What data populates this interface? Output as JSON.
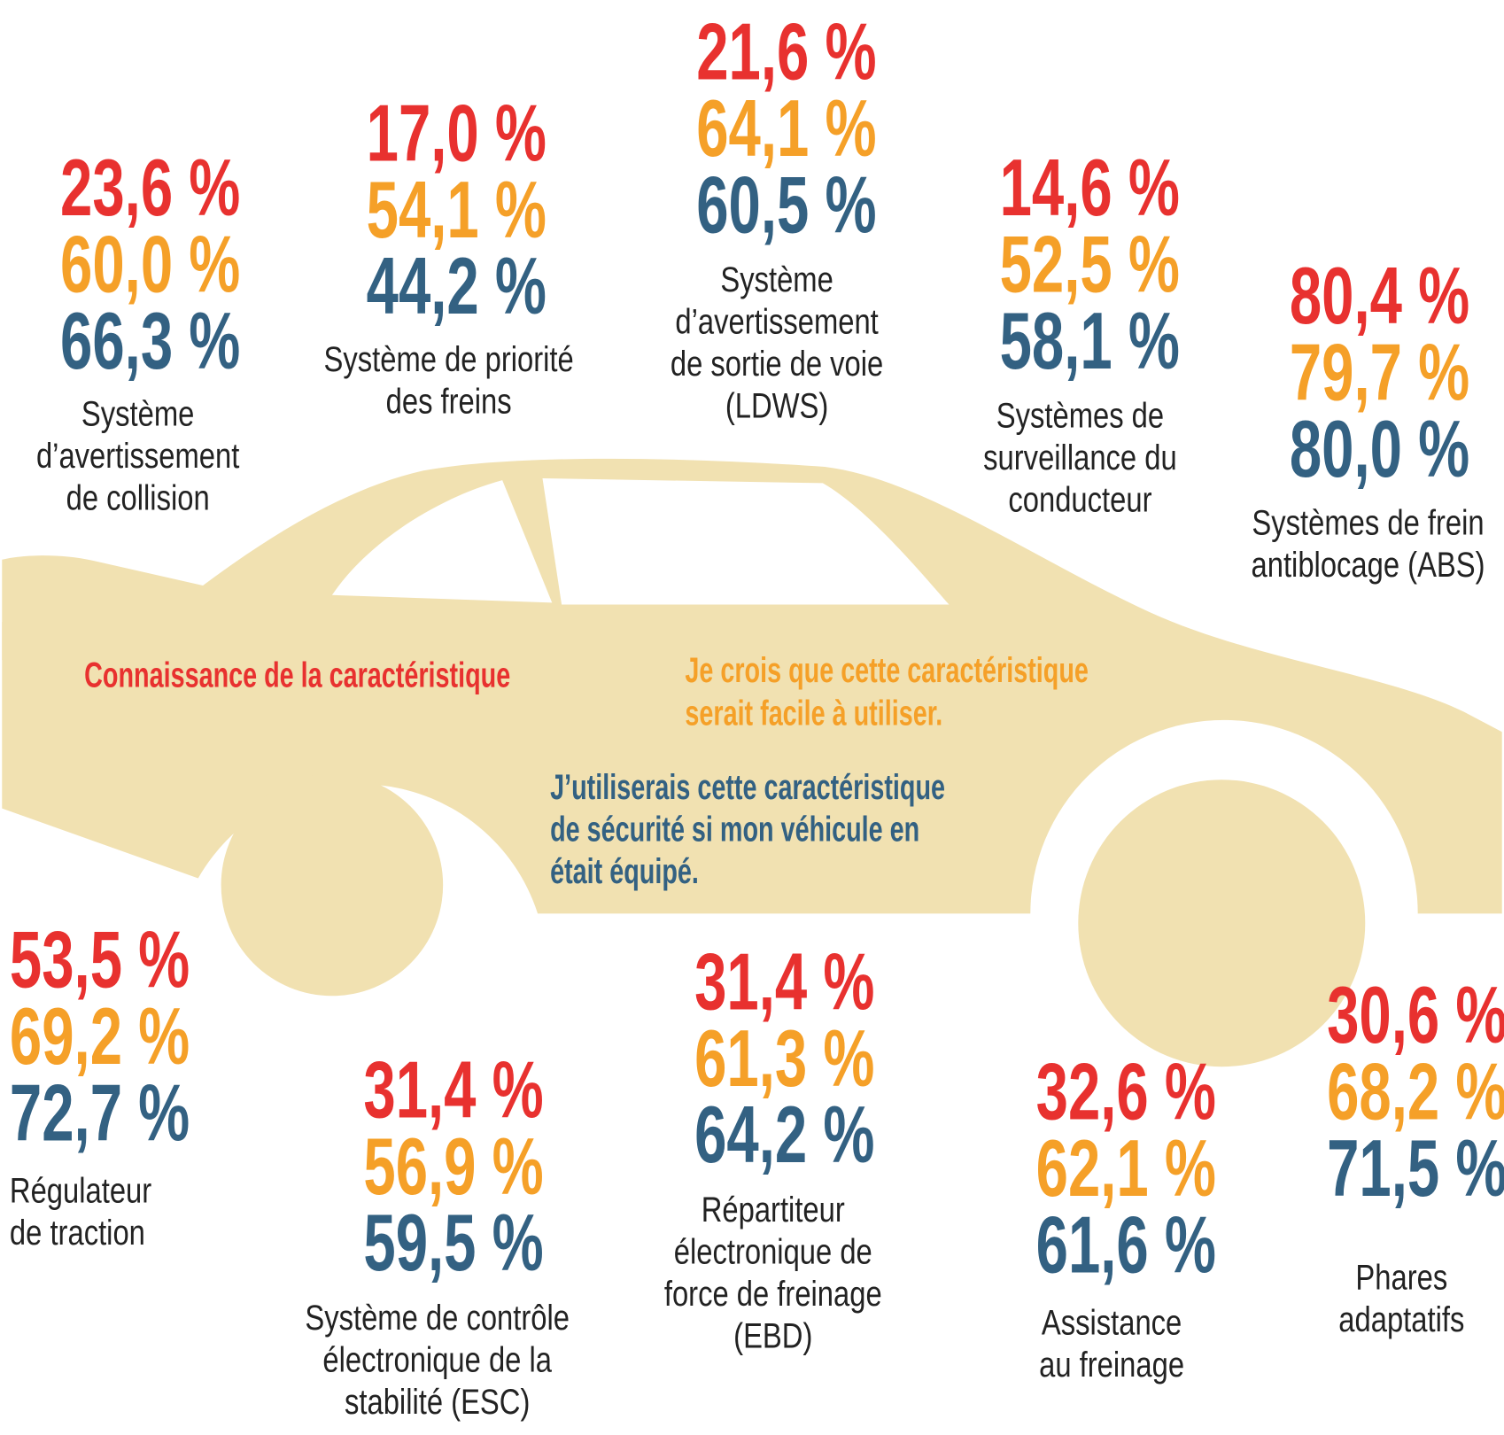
{
  "legend": {
    "awareness": "Connaissance de la caractéristique",
    "ease": [
      "Je crois que cette caractéristique",
      "serait facile à utiliser."
    ],
    "use": [
      "J’utiliserais cette caractéristique",
      "de sécurité si mon véhicule en",
      "était équipé."
    ]
  },
  "features": [
    {
      "awareness": "23,6 %",
      "ease": "60,0 %",
      "use": "66,3 %",
      "label": [
        "Système",
        "d’avertissement",
        "de collision"
      ]
    },
    {
      "awareness": "17,0 %",
      "ease": "54,1 %",
      "use": "44,2 %",
      "label": [
        "Système de priorité",
        "des freins"
      ]
    },
    {
      "awareness": "21,6 %",
      "ease": "64,1 %",
      "use": "60,5 %",
      "label": [
        "Système",
        "d’avertissement",
        "de sortie de voie",
        "(LDWS)"
      ]
    },
    {
      "awareness": "14,6 %",
      "ease": "52,5 %",
      "use": "58,1 %",
      "label": [
        "Systèmes de",
        "surveillance du",
        "conducteur"
      ]
    },
    {
      "awareness": "80,4 %",
      "ease": "79,7 %",
      "use": "80,0 %",
      "label": [
        "Systèmes de frein",
        "antiblocage (ABS)"
      ]
    },
    {
      "awareness": "53,5 %",
      "ease": "69,2 %",
      "use": "72,7 %",
      "label": [
        "Régulateur",
        "de traction"
      ]
    },
    {
      "awareness": "31,4 %",
      "ease": "56,9 %",
      "use": "59,5 %",
      "label": [
        "Système de contrôle",
        "électronique de la",
        "stabilité (ESC)"
      ]
    },
    {
      "awareness": "31,4 %",
      "ease": "61,3 %",
      "use": "64,2 %",
      "label": [
        "Répartiteur",
        "électronique de",
        "force de freinage",
        "(EBD)"
      ]
    },
    {
      "awareness": "32,6 %",
      "ease": "62,1 %",
      "use": "61,6 %",
      "label": [
        "Assistance",
        "au freinage"
      ]
    },
    {
      "awareness": "30,6 %",
      "ease": "68,2 %",
      "use": "71,5 %",
      "label": [
        "Phares",
        "adaptatifs"
      ]
    }
  ]
}
